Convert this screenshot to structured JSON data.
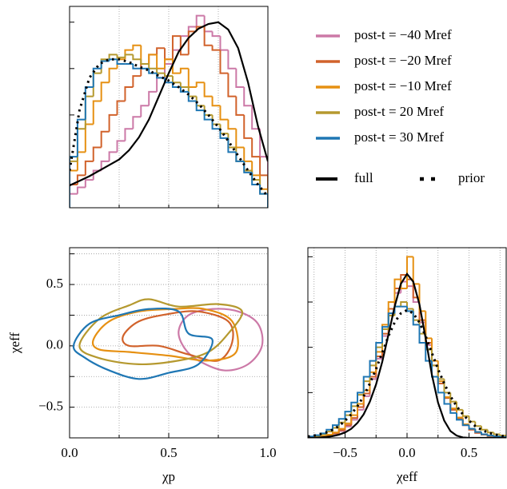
{
  "chart_data": [
    {
      "type": "histogram",
      "legend": "right",
      "grid": "x",
      "bins": [
        0,
        0.04,
        0.08,
        0.12,
        0.16,
        0.2,
        0.24,
        0.28,
        0.32,
        0.36,
        0.4,
        0.44,
        0.48,
        0.52,
        0.56,
        0.6,
        0.64,
        0.68,
        0.72,
        0.76,
        0.8,
        0.84,
        0.88,
        0.92,
        0.96,
        1.0
      ],
      "xlim": [
        0,
        1
      ],
      "ylim": [
        0,
        2.17
      ],
      "xminor": [
        0.25,
        0.5,
        0.75
      ],
      "yminor": [
        0.5,
        1,
        1.5,
        2
      ],
      "series": [
        {
          "name": "post-t = −40 Mref",
          "color": "#cc79a7",
          "values": [
            0.15,
            0.22,
            0.3,
            0.4,
            0.5,
            0.6,
            0.72,
            0.85,
            0.98,
            1.1,
            1.25,
            1.4,
            1.55,
            1.7,
            1.85,
            1.95,
            2.07,
            1.9,
            1.85,
            1.7,
            1.5,
            1.3,
            1.1,
            0.85,
            0.55
          ]
        },
        {
          "name": "post-t = −20 Mref",
          "color": "#d1622b",
          "values": [
            0.25,
            0.35,
            0.5,
            0.65,
            0.82,
            1.0,
            1.15,
            1.3,
            1.42,
            1.55,
            1.65,
            1.72,
            1.6,
            1.85,
            1.65,
            1.9,
            1.95,
            1.75,
            1.7,
            1.45,
            1.2,
            1.0,
            0.75,
            0.55,
            0.35
          ]
        },
        {
          "name": "post-t = −10 Mref",
          "color": "#e69012",
          "values": [
            0.4,
            0.6,
            0.9,
            1.15,
            1.35,
            1.5,
            1.6,
            1.7,
            1.75,
            1.55,
            1.65,
            1.5,
            1.6,
            1.45,
            1.5,
            1.3,
            1.35,
            1.2,
            1.1,
            0.95,
            0.85,
            0.65,
            0.5,
            0.35,
            0.2
          ]
        },
        {
          "name": "post-t = 20 Mref",
          "color": "#b5992f",
          "values": [
            0.5,
            0.85,
            1.2,
            1.45,
            1.6,
            1.65,
            1.62,
            1.65,
            1.6,
            1.55,
            1.5,
            1.45,
            1.42,
            1.35,
            1.3,
            1.2,
            1.1,
            1.0,
            0.9,
            0.8,
            0.65,
            0.5,
            0.4,
            0.3,
            0.15
          ]
        },
        {
          "name": "post-t = 30 Mref",
          "color": "#1f77b4",
          "values": [
            0.55,
            0.95,
            1.3,
            1.5,
            1.58,
            1.6,
            1.55,
            1.55,
            1.5,
            1.5,
            1.45,
            1.4,
            1.35,
            1.3,
            1.25,
            1.15,
            1.05,
            0.95,
            0.85,
            0.75,
            0.6,
            0.5,
            0.38,
            0.25,
            0.15
          ]
        }
      ],
      "curves": [
        {
          "name": "full",
          "color": "#000000",
          "style": "solid",
          "x": [
            0,
            0.05,
            0.1,
            0.15,
            0.2,
            0.25,
            0.3,
            0.35,
            0.4,
            0.45,
            0.5,
            0.55,
            0.6,
            0.65,
            0.7,
            0.75,
            0.8,
            0.85,
            0.9,
            0.95,
            1.0
          ],
          "values": [
            0.24,
            0.29,
            0.34,
            0.4,
            0.46,
            0.52,
            0.62,
            0.76,
            0.95,
            1.2,
            1.45,
            1.68,
            1.83,
            1.93,
            1.98,
            2.0,
            1.92,
            1.72,
            1.35,
            0.88,
            0.5
          ]
        },
        {
          "name": "prior",
          "color": "#000000",
          "style": "dotted",
          "x": [
            0,
            0.05,
            0.1,
            0.15,
            0.2,
            0.25,
            0.3,
            0.35,
            0.4,
            0.45,
            0.5,
            0.55,
            0.6,
            0.65,
            0.7,
            0.75,
            0.8,
            0.85,
            0.9,
            0.95,
            1.0
          ],
          "values": [
            0.4,
            1.05,
            1.4,
            1.55,
            1.6,
            1.6,
            1.57,
            1.52,
            1.48,
            1.42,
            1.37,
            1.3,
            1.22,
            1.12,
            1.0,
            0.87,
            0.72,
            0.56,
            0.4,
            0.25,
            0.12
          ]
        }
      ]
    },
    {
      "type": "contour",
      "grid": "both",
      "xlabel": "χp",
      "ylabel": "χeff",
      "xlim": [
        0,
        1
      ],
      "ylim": [
        -0.75,
        0.8
      ],
      "xticks": [
        {
          "value": 0,
          "label": "0.0"
        },
        {
          "value": 0.5,
          "label": "0.5"
        },
        {
          "value": 1,
          "label": "1.0"
        }
      ],
      "xminor": [
        0.25,
        0.75
      ],
      "yticks": [
        {
          "value": -0.5,
          "label": "−0.5"
        },
        {
          "value": 0,
          "label": "0.0"
        },
        {
          "value": 0.5,
          "label": "0.5"
        }
      ],
      "yminor": [
        -0.25,
        0.25,
        0.75
      ],
      "series": [
        {
          "color": "#cc79a7",
          "x": [
            0.55,
            0.6,
            0.72,
            0.85,
            0.95,
            0.97,
            0.9,
            0.78,
            0.65,
            0.58
          ],
          "values": [
            0.12,
            0.25,
            0.3,
            0.28,
            0.18,
            0.0,
            -0.15,
            -0.2,
            -0.12,
            -0.02
          ]
        },
        {
          "color": "#d1622b",
          "x": [
            0.27,
            0.35,
            0.5,
            0.65,
            0.8,
            0.82,
            0.75,
            0.6,
            0.45,
            0.3
          ],
          "values": [
            0.08,
            0.2,
            0.26,
            0.28,
            0.2,
            0.03,
            -0.12,
            -0.07,
            0.0,
            0.0
          ]
        },
        {
          "color": "#e69012",
          "x": [
            0.12,
            0.2,
            0.35,
            0.52,
            0.68,
            0.82,
            0.84,
            0.7,
            0.5,
            0.3,
            0.15
          ],
          "values": [
            0.05,
            0.2,
            0.28,
            0.3,
            0.3,
            0.2,
            -0.05,
            -0.12,
            -0.08,
            -0.05,
            -0.03
          ]
        },
        {
          "color": "#b5992f",
          "x": [
            0.05,
            0.15,
            0.3,
            0.4,
            0.55,
            0.75,
            0.87,
            0.8,
            0.7,
            0.55,
            0.35,
            0.15
          ],
          "values": [
            0.0,
            0.22,
            0.33,
            0.38,
            0.32,
            0.34,
            0.28,
            0.1,
            -0.05,
            -0.12,
            -0.15,
            -0.1
          ]
        },
        {
          "color": "#1f77b4",
          "x": [
            0.02,
            0.1,
            0.25,
            0.4,
            0.55,
            0.6,
            0.72,
            0.65,
            0.5,
            0.35,
            0.2,
            0.08
          ],
          "values": [
            0.0,
            0.18,
            0.25,
            0.3,
            0.28,
            0.1,
            0.05,
            -0.15,
            -0.22,
            -0.27,
            -0.2,
            -0.1
          ]
        }
      ]
    },
    {
      "type": "histogram",
      "grid": "x",
      "xlabel": "χeff",
      "bins": [
        -0.8,
        -0.75,
        -0.7,
        -0.65,
        -0.6,
        -0.55,
        -0.5,
        -0.45,
        -0.4,
        -0.35,
        -0.3,
        -0.25,
        -0.2,
        -0.15,
        -0.1,
        -0.05,
        0,
        0.05,
        0.1,
        0.15,
        0.2,
        0.25,
        0.3,
        0.35,
        0.4,
        0.45,
        0.5,
        0.55,
        0.6,
        0.65,
        0.7,
        0.75,
        0.8
      ],
      "xlim": [
        -0.8,
        0.8
      ],
      "ylim": [
        0,
        4.2
      ],
      "xticks": [
        {
          "value": -0.5,
          "label": "−0.5"
        },
        {
          "value": 0,
          "label": "0.0"
        },
        {
          "value": 0.5,
          "label": "0.5"
        }
      ],
      "xminor": [
        -0.75,
        -0.25,
        0.25,
        0.75
      ],
      "yminor": [
        1,
        2,
        3,
        4
      ],
      "series": [
        {
          "color": "#cc79a7",
          "values": [
            0.01,
            0.02,
            0.03,
            0.05,
            0.09,
            0.15,
            0.25,
            0.4,
            0.62,
            0.92,
            1.3,
            1.75,
            2.25,
            2.75,
            3.2,
            3.45,
            3.35,
            3.0,
            2.55,
            2.05,
            1.6,
            1.2,
            0.88,
            0.62,
            0.42,
            0.28,
            0.18,
            0.11,
            0.07,
            0.04,
            0.02,
            0.01
          ]
        },
        {
          "color": "#d1622b",
          "values": [
            0.01,
            0.02,
            0.03,
            0.06,
            0.1,
            0.17,
            0.28,
            0.44,
            0.68,
            0.98,
            1.35,
            1.8,
            2.3,
            2.85,
            3.3,
            3.6,
            3.5,
            3.1,
            2.6,
            2.1,
            1.6,
            1.2,
            0.88,
            0.62,
            0.42,
            0.28,
            0.18,
            0.11,
            0.07,
            0.04,
            0.02,
            0.01
          ]
        },
        {
          "color": "#e69012",
          "values": [
            0.01,
            0.02,
            0.04,
            0.07,
            0.12,
            0.2,
            0.32,
            0.5,
            0.75,
            1.05,
            1.45,
            1.9,
            2.5,
            3.0,
            3.5,
            3.3,
            4.0,
            3.4,
            2.8,
            2.2,
            1.7,
            1.25,
            0.9,
            0.65,
            0.45,
            0.3,
            0.2,
            0.13,
            0.08,
            0.05,
            0.03,
            0.02
          ]
        },
        {
          "color": "#b5992f",
          "values": [
            0.02,
            0.04,
            0.08,
            0.14,
            0.22,
            0.34,
            0.5,
            0.7,
            0.95,
            1.25,
            1.6,
            2.0,
            2.4,
            2.7,
            2.9,
            3.0,
            2.85,
            2.6,
            2.3,
            1.95,
            1.6,
            1.3,
            1.0,
            0.8,
            0.62,
            0.48,
            0.36,
            0.26,
            0.18,
            0.12,
            0.08,
            0.05
          ]
        },
        {
          "color": "#1f77b4",
          "values": [
            0.03,
            0.06,
            0.1,
            0.18,
            0.28,
            0.42,
            0.58,
            0.78,
            1.0,
            1.35,
            1.7,
            2.1,
            2.45,
            2.75,
            2.9,
            2.9,
            2.8,
            2.5,
            2.1,
            1.7,
            1.35,
            1.0,
            0.75,
            0.55,
            0.4,
            0.28,
            0.2,
            0.13,
            0.08,
            0.05,
            0.03,
            0.02
          ]
        }
      ],
      "curves": [
        {
          "color": "#000000",
          "style": "solid",
          "x": [
            -0.8,
            -0.75,
            -0.7,
            -0.65,
            -0.6,
            -0.55,
            -0.5,
            -0.45,
            -0.4,
            -0.35,
            -0.3,
            -0.25,
            -0.2,
            -0.15,
            -0.1,
            -0.05,
            0,
            0.05,
            0.1,
            0.15,
            0.2,
            0.25,
            0.3,
            0.35,
            0.4,
            0.45,
            0.5,
            0.55,
            0.6,
            0.65,
            0.7,
            0.75,
            0.8
          ],
          "values": [
            0,
            0,
            0.01,
            0.02,
            0.04,
            0.07,
            0.12,
            0.2,
            0.33,
            0.52,
            0.8,
            1.18,
            1.68,
            2.28,
            2.9,
            3.4,
            3.62,
            3.45,
            2.95,
            2.2,
            1.4,
            0.78,
            0.38,
            0.15,
            0.05,
            0.01,
            0,
            0,
            0,
            0,
            0,
            0,
            0
          ]
        },
        {
          "color": "#000000",
          "style": "dotted",
          "x": [
            -0.8,
            -0.75,
            -0.7,
            -0.65,
            -0.6,
            -0.55,
            -0.5,
            -0.45,
            -0.4,
            -0.35,
            -0.3,
            -0.25,
            -0.2,
            -0.15,
            -0.1,
            -0.05,
            0,
            0.05,
            0.1,
            0.15,
            0.2,
            0.25,
            0.3,
            0.35,
            0.4,
            0.45,
            0.5,
            0.55,
            0.6,
            0.65,
            0.7,
            0.75,
            0.8
          ],
          "values": [
            0.03,
            0.05,
            0.08,
            0.12,
            0.18,
            0.26,
            0.38,
            0.52,
            0.7,
            0.92,
            1.2,
            1.52,
            1.88,
            2.25,
            2.55,
            2.75,
            2.82,
            2.75,
            2.55,
            2.25,
            1.88,
            1.52,
            1.2,
            0.92,
            0.7,
            0.52,
            0.38,
            0.26,
            0.18,
            0.12,
            0.08,
            0.05,
            0.03
          ]
        }
      ]
    }
  ]
}
